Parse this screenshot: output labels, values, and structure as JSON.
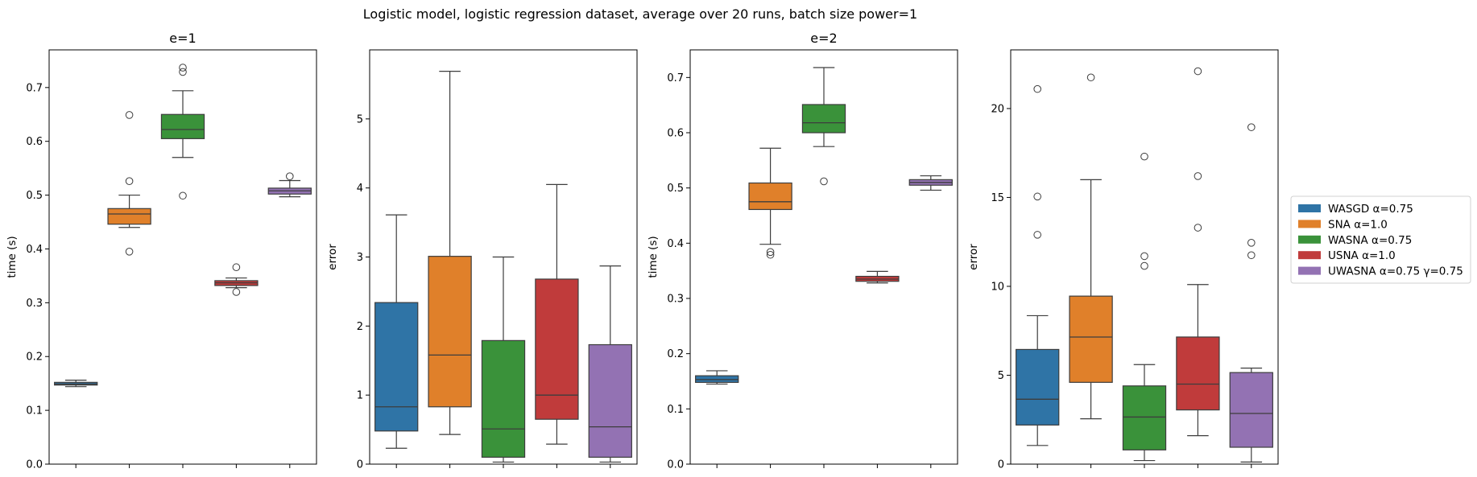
{
  "title": "Logistic model, logistic regression dataset, average over 20 runs, batch size power=1",
  "legend": {
    "placement": "center-right",
    "entries": [
      {
        "label": "WASGD α=0.75",
        "color": "#2f74a6"
      },
      {
        "label": "SNA α=1.0",
        "color": "#e0802a"
      },
      {
        "label": "WASNA α=0.75",
        "color": "#3a923a"
      },
      {
        "label": "USNA α=1.0",
        "color": "#c03b3b"
      },
      {
        "label": "UWASNA α=0.75 γ=0.75",
        "color": "#9372b3"
      }
    ]
  },
  "chart_data": [
    {
      "type": "box",
      "title": "e=1",
      "ylabel": "time (s)",
      "ylim": [
        0,
        0.77
      ],
      "yticks": [
        "0.0",
        "0.1",
        "0.2",
        "0.3",
        "0.4",
        "0.5",
        "0.6",
        "0.7"
      ],
      "grid": false,
      "boxes": [
        {
          "series": "WASGD α=0.75",
          "whislo": 0.144,
          "q1": 0.147,
          "median": 0.149,
          "q3": 0.152,
          "whishi": 0.156,
          "fliers": []
        },
        {
          "series": "SNA α=1.0",
          "whislo": 0.44,
          "q1": 0.446,
          "median": 0.465,
          "q3": 0.475,
          "whishi": 0.5,
          "fliers": [
            0.395,
            0.526,
            0.649
          ]
        },
        {
          "series": "WASNA α=0.75",
          "whislo": 0.57,
          "q1": 0.605,
          "median": 0.622,
          "q3": 0.65,
          "whishi": 0.694,
          "fliers": [
            0.499,
            0.729,
            0.737
          ]
        },
        {
          "series": "USNA α=1.0",
          "whislo": 0.328,
          "q1": 0.332,
          "median": 0.337,
          "q3": 0.341,
          "whishi": 0.346,
          "fliers": [
            0.32,
            0.366
          ]
        },
        {
          "series": "UWASNA α=0.75 γ=0.75",
          "whislo": 0.497,
          "q1": 0.502,
          "median": 0.508,
          "q3": 0.513,
          "whishi": 0.527,
          "fliers": [
            0.535
          ]
        }
      ]
    },
    {
      "type": "box",
      "title": "",
      "ylabel": "error",
      "ylim": [
        0,
        6.0
      ],
      "yticks": [
        "0",
        "1",
        "2",
        "3",
        "4",
        "5"
      ],
      "grid": false,
      "boxes": [
        {
          "series": "WASGD α=0.75",
          "whislo": 0.23,
          "q1": 0.48,
          "median": 0.83,
          "q3": 2.34,
          "whishi": 3.61,
          "fliers": []
        },
        {
          "series": "SNA α=1.0",
          "whislo": 0.43,
          "q1": 0.83,
          "median": 1.58,
          "q3": 3.01,
          "whishi": 5.69,
          "fliers": []
        },
        {
          "series": "WASNA α=0.75",
          "whislo": 0.03,
          "q1": 0.1,
          "median": 0.51,
          "q3": 1.79,
          "whishi": 3.0,
          "fliers": []
        },
        {
          "series": "USNA α=1.0",
          "whislo": 0.29,
          "q1": 0.65,
          "median": 1.0,
          "q3": 2.68,
          "whishi": 4.05,
          "fliers": []
        },
        {
          "series": "UWASNA α=0.75 γ=0.75",
          "whislo": 0.03,
          "q1": 0.1,
          "median": 0.54,
          "q3": 1.73,
          "whishi": 2.87,
          "fliers": []
        }
      ]
    },
    {
      "type": "box",
      "title": "e=2",
      "ylabel": "time (s)",
      "ylim": [
        0,
        0.75
      ],
      "yticks": [
        "0.0",
        "0.1",
        "0.2",
        "0.3",
        "0.4",
        "0.5",
        "0.6",
        "0.7"
      ],
      "grid": false,
      "boxes": [
        {
          "series": "WASGD α=0.75",
          "whislo": 0.145,
          "q1": 0.148,
          "median": 0.153,
          "q3": 0.16,
          "whishi": 0.169,
          "fliers": []
        },
        {
          "series": "SNA α=1.0",
          "whislo": 0.398,
          "q1": 0.461,
          "median": 0.475,
          "q3": 0.509,
          "whishi": 0.572,
          "fliers": [
            0.379,
            0.384
          ]
        },
        {
          "series": "WASNA α=0.75",
          "whislo": 0.575,
          "q1": 0.6,
          "median": 0.618,
          "q3": 0.651,
          "whishi": 0.718,
          "fliers": [
            0.512
          ]
        },
        {
          "series": "USNA α=1.0",
          "whislo": 0.328,
          "q1": 0.331,
          "median": 0.335,
          "q3": 0.34,
          "whishi": 0.349,
          "fliers": []
        },
        {
          "series": "UWASNA α=0.75 γ=0.75",
          "whislo": 0.496,
          "q1": 0.505,
          "median": 0.51,
          "q3": 0.515,
          "whishi": 0.522,
          "fliers": []
        }
      ]
    },
    {
      "type": "box",
      "title": "",
      "ylabel": "error",
      "ylim": [
        0,
        23.3
      ],
      "yticks": [
        "0",
        "5",
        "10",
        "15",
        "20"
      ],
      "grid": false,
      "boxes": [
        {
          "series": "WASGD α=0.75",
          "whislo": 1.05,
          "q1": 2.2,
          "median": 3.65,
          "q3": 6.45,
          "whishi": 8.35,
          "fliers": [
            12.9,
            15.05,
            21.1
          ]
        },
        {
          "series": "SNA α=1.0",
          "whislo": 2.55,
          "q1": 4.6,
          "median": 7.15,
          "q3": 9.45,
          "whishi": 16.0,
          "fliers": [
            21.75
          ]
        },
        {
          "series": "WASNA α=0.75",
          "whislo": 0.2,
          "q1": 0.8,
          "median": 2.65,
          "q3": 4.4,
          "whishi": 5.6,
          "fliers": [
            11.15,
            11.7,
            17.3
          ]
        },
        {
          "series": "USNA α=1.0",
          "whislo": 1.6,
          "q1": 3.05,
          "median": 4.5,
          "q3": 7.15,
          "whishi": 10.1,
          "fliers": [
            13.3,
            16.2,
            22.1
          ]
        },
        {
          "series": "UWASNA α=0.75 γ=0.75",
          "whislo": 0.12,
          "q1": 0.95,
          "median": 2.85,
          "q3": 5.15,
          "whishi": 5.4,
          "fliers": [
            11.75,
            12.45,
            18.95
          ]
        }
      ]
    }
  ]
}
